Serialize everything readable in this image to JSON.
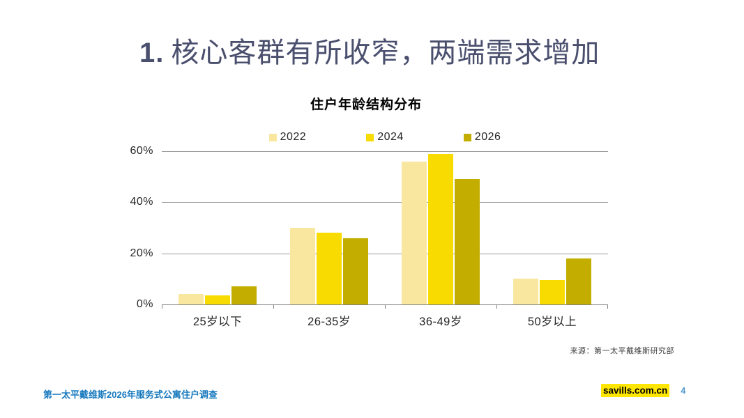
{
  "slide": {
    "title_number": "1.",
    "title_text": "核心客群有所收窄，两端需求增加",
    "source_note": "来源：第一太平戴维斯研究部",
    "footer_left": "第一太平戴维斯2026年服务式公寓住户调查",
    "footer_site": "savills.com.cn",
    "page_number": "4"
  },
  "colors": {
    "title_text": "#4a4f6e",
    "footer_blue": "#1779be",
    "page_blue": "#4e97cc",
    "highlight": "#ffe600",
    "gridline": "#9b9b9b",
    "axis": "#7f7f7f",
    "label": "#262626",
    "source": "#404040"
  },
  "chart_data": {
    "type": "bar",
    "title": "住户年龄结构分布",
    "categories": [
      "25岁以下",
      "26-35岁",
      "36-49岁",
      "50岁以上"
    ],
    "series": [
      {
        "name": "2022",
        "color": "#fae79f",
        "values": [
          4,
          30,
          56,
          10
        ]
      },
      {
        "name": "2024",
        "color": "#f8db00",
        "values": [
          3.5,
          28,
          59,
          9.5
        ]
      },
      {
        "name": "2026",
        "color": "#c3ae00",
        "values": [
          7,
          26,
          49,
          18
        ]
      }
    ],
    "ylabel": "",
    "xlabel": "",
    "ylim": [
      0,
      60
    ],
    "yticks": [
      {
        "value": 0,
        "label": "0%"
      },
      {
        "value": 20,
        "label": "20%"
      },
      {
        "value": 40,
        "label": "40%"
      },
      {
        "value": 60,
        "label": "60%"
      }
    ],
    "legend_position": "top",
    "grid": true
  }
}
